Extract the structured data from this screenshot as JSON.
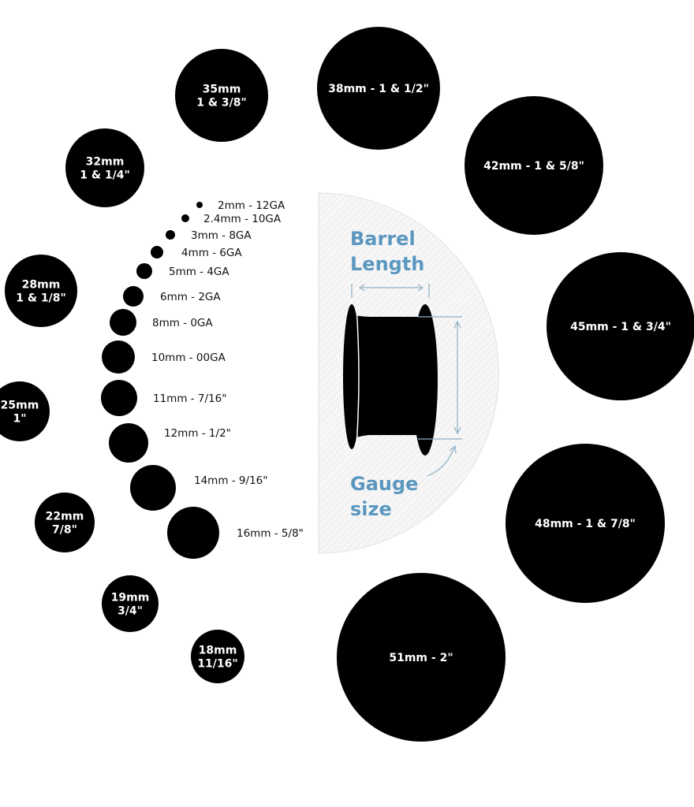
{
  "large_sizes": [
    {
      "lines": [
        "35mm",
        "1 & 3/8\""
      ]
    },
    {
      "lines": [
        "38mm - 1 & 1/2\""
      ]
    },
    {
      "lines": [
        "32mm",
        "1 & 1/4\""
      ]
    },
    {
      "lines": [
        "42mm - 1 & 5/8\""
      ]
    },
    {
      "lines": [
        "28mm",
        "1 & 1/8\""
      ]
    },
    {
      "lines": [
        "45mm - 1 & 3/4\""
      ]
    },
    {
      "lines": [
        "25mm",
        "1\""
      ]
    },
    {
      "lines": [
        "48mm - 1 & 7/8\""
      ]
    },
    {
      "lines": [
        "22mm",
        "7/8\""
      ]
    },
    {
      "lines": [
        "19mm",
        "3/4\""
      ]
    },
    {
      "lines": [
        "18mm",
        "11/16\""
      ]
    },
    {
      "lines": [
        "51mm - 2\""
      ]
    }
  ],
  "small_sizes": [
    "2mm - 12GA",
    "2.4mm - 10GA",
    "3mm - 8GA",
    "4mm - 6GA",
    "5mm - 4GA",
    "6mm - 2GA",
    "8mm - 0GA",
    "10mm - 00GA",
    "11mm - 7/16\"",
    "12mm - 1/2\"",
    "14mm - 9/16\"",
    "16mm - 5/8\""
  ],
  "diagram": {
    "barrel_label": [
      "Barrel",
      "Length"
    ],
    "gauge_label": [
      "Gauge",
      "size"
    ]
  },
  "colors": {
    "circle": "#000000",
    "accent": "#5b97bf",
    "panel": "#f4f4f4"
  }
}
